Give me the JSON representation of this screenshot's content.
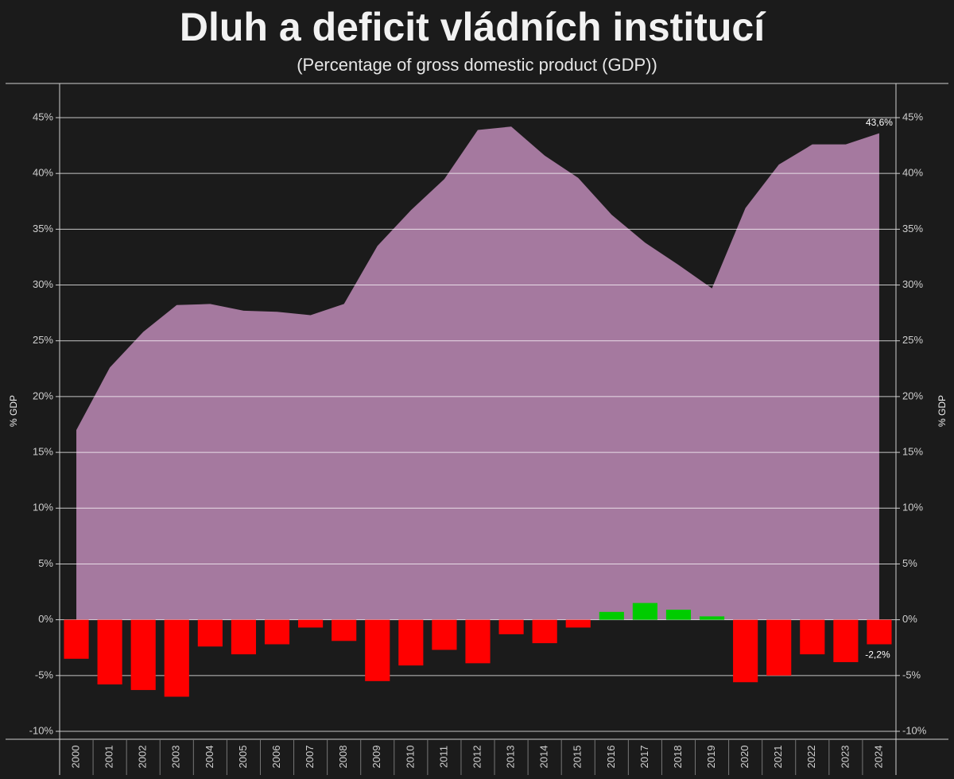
{
  "chart_data": {
    "type": "combo",
    "title": "Dluh a deficit vládních institucí",
    "subtitle": "(Percentage of gross domestic product (GDP))",
    "ylabel": "% GDP",
    "y2label": "% GDP",
    "categories": [
      "2000",
      "2001",
      "2002",
      "2003",
      "2004",
      "2005",
      "2006",
      "2007",
      "2008",
      "2009",
      "2010",
      "2011",
      "2012",
      "2013",
      "2014",
      "2015",
      "2016",
      "2017",
      "2018",
      "2019",
      "2020",
      "2021",
      "2022",
      "2023",
      "2024"
    ],
    "series": [
      {
        "type": "area",
        "color": "#a5799f",
        "values": [
          17.0,
          22.6,
          25.8,
          28.2,
          28.3,
          27.7,
          27.6,
          27.3,
          28.3,
          33.5,
          36.7,
          39.5,
          43.9,
          44.2,
          41.6,
          39.6,
          36.3,
          33.8,
          31.8,
          29.7,
          36.9,
          40.8,
          42.6,
          42.6,
          43.6
        ],
        "value_labels": [
          null,
          null,
          null,
          null,
          null,
          null,
          null,
          null,
          null,
          null,
          null,
          null,
          null,
          null,
          null,
          null,
          null,
          null,
          null,
          null,
          null,
          null,
          null,
          null,
          "43,6%"
        ]
      },
      {
        "type": "bar",
        "axis": "y2",
        "color_negative": "#ff0000",
        "color_positive": "#00cc00",
        "values": [
          -3.5,
          -5.8,
          -6.3,
          -6.9,
          -2.4,
          -3.1,
          -2.2,
          -0.7,
          -1.9,
          -5.5,
          -4.1,
          -2.7,
          -3.9,
          -1.3,
          -2.1,
          -0.7,
          0.7,
          1.5,
          0.9,
          0.3,
          -5.6,
          -5.0,
          -3.1,
          -3.8,
          -2.2
        ],
        "value_labels": [
          null,
          null,
          null,
          null,
          null,
          null,
          null,
          null,
          null,
          null,
          null,
          null,
          null,
          null,
          null,
          null,
          null,
          null,
          null,
          null,
          null,
          null,
          null,
          null,
          "-2,2%"
        ]
      }
    ],
    "ylim": [
      -10,
      45
    ],
    "y2lim": [
      -10,
      45
    ],
    "yticks": [
      {
        "value": -10,
        "label": "-10%"
      },
      {
        "value": -5,
        "label": "-5%"
      },
      {
        "value": 0,
        "label": "0%"
      },
      {
        "value": 5,
        "label": "5%"
      },
      {
        "value": 10,
        "label": "10%"
      },
      {
        "value": 15,
        "label": "15%"
      },
      {
        "value": 20,
        "label": "20%"
      },
      {
        "value": 25,
        "label": "25%"
      },
      {
        "value": 30,
        "label": "30%"
      },
      {
        "value": 35,
        "label": "35%"
      },
      {
        "value": 40,
        "label": "40%"
      },
      {
        "value": 45,
        "label": "45%"
      }
    ],
    "y2ticks": [
      {
        "value": -10,
        "label": "-10%"
      },
      {
        "value": -5,
        "label": "-5%"
      },
      {
        "value": 0,
        "label": "0%"
      },
      {
        "value": 5,
        "label": "5%"
      },
      {
        "value": 10,
        "label": "10%"
      },
      {
        "value": 15,
        "label": "15%"
      },
      {
        "value": 20,
        "label": "20%"
      },
      {
        "value": 25,
        "label": "25%"
      },
      {
        "value": 30,
        "label": "30%"
      },
      {
        "value": 35,
        "label": "35%"
      },
      {
        "value": 40,
        "label": "40%"
      },
      {
        "value": 45,
        "label": "45%"
      }
    ],
    "grid": true
  }
}
